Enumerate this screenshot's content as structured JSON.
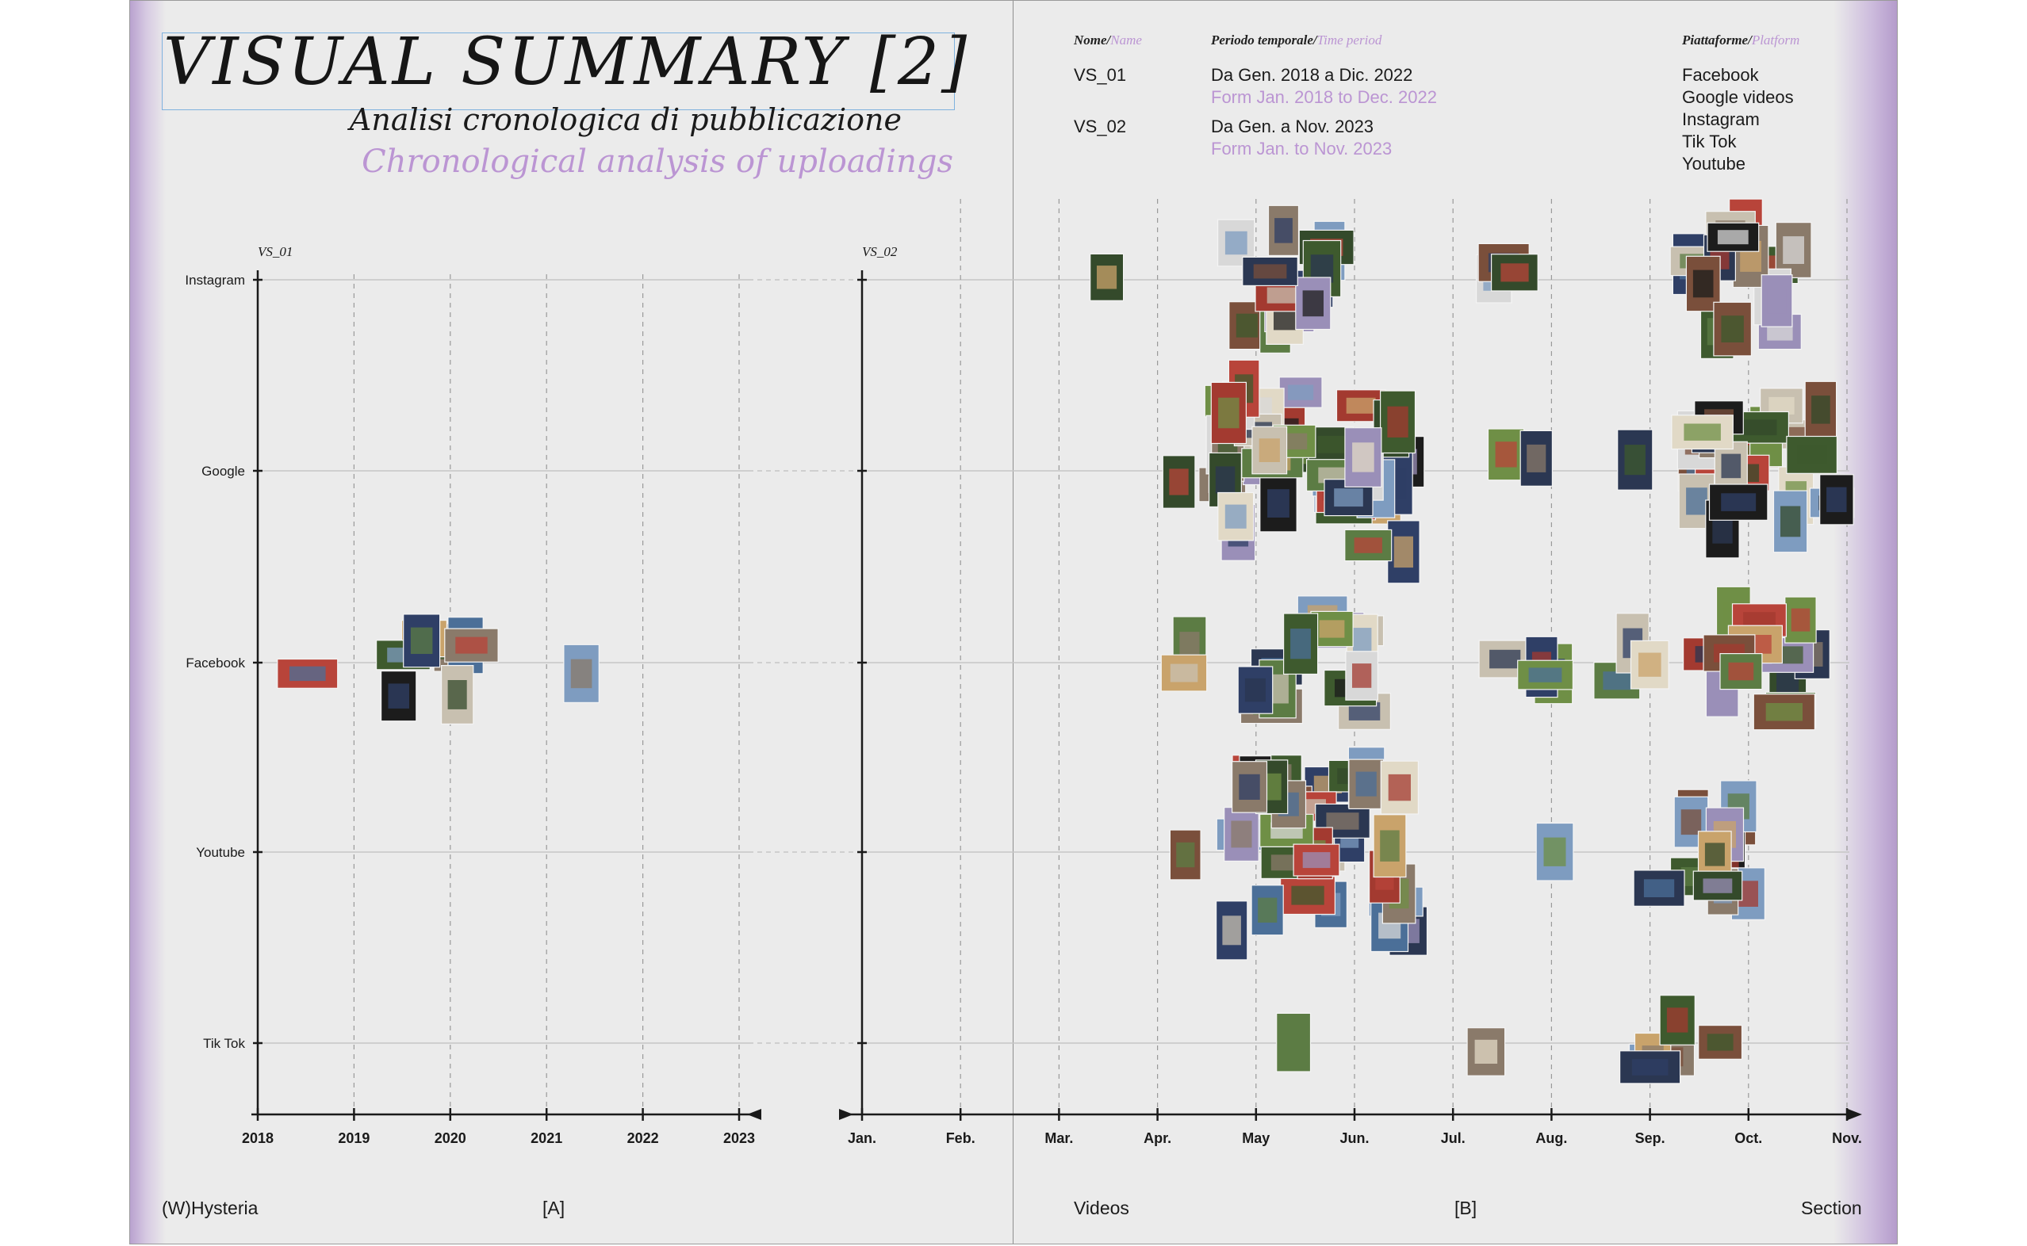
{
  "title": "VISUAL SUMMARY [2]",
  "subtitle_it": "Analisi cronologica di pubblicazione",
  "subtitle_en": "Chronological analysis of uploadings",
  "header": {
    "name_label_it": "Nome/",
    "name_label_en": "Name",
    "period_label_it": "Periodo temporale/",
    "period_label_en": "Time period",
    "platform_label_it": "Piattaforme/",
    "platform_label_en": "Platform"
  },
  "summaries": [
    {
      "name": "VS_01",
      "period_it": "Da Gen. 2018 a Dic. 2022",
      "period_en": "Form Jan. 2018 to Dec. 2022"
    },
    {
      "name": "VS_02",
      "period_it": "Da Gen. a Nov. 2023",
      "period_en": "Form Jan. to Nov. 2023"
    }
  ],
  "platforms": [
    "Facebook",
    "Google videos",
    "Instagram",
    "Tik Tok",
    "Youtube"
  ],
  "footer": {
    "left": "(W)Hysteria",
    "left_mark": "[A]",
    "center": "Videos",
    "right_mark": "[B]",
    "right": "Section"
  },
  "colors": {
    "accent_lilac": "#bb95d3",
    "title_box": "#7fb2de",
    "paper": "#ebebeb",
    "ink": "#161616"
  },
  "chart_data": [
    {
      "type": "scatter",
      "title": "VS_01",
      "x_label": "",
      "y_label": "",
      "x_ticks": [
        "2018",
        "2019",
        "2020",
        "2021",
        "2022",
        "2023"
      ],
      "y_categories": [
        "Instagram",
        "Google",
        "Facebook",
        "Youtube",
        "Tik Tok"
      ],
      "grid": true,
      "clusters": [
        {
          "x": 2018.55,
          "platform": "Facebook",
          "count": 1
        },
        {
          "x": 2019.8,
          "platform": "Facebook",
          "count": 8
        },
        {
          "x": 2021.45,
          "platform": "Facebook",
          "count": 1
        }
      ]
    },
    {
      "type": "scatter",
      "title": "VS_02",
      "x_label": "",
      "y_label": "",
      "x_ticks": [
        "Jan.",
        "Feb.",
        "Mar.",
        "Apr.",
        "May",
        "Jun.",
        "Jul.",
        "Aug.",
        "Sep.",
        "Oct.",
        "Nov."
      ],
      "y_categories": [
        "Instagram",
        "Google",
        "Facebook",
        "Youtube",
        "Tik Tok"
      ],
      "grid": true,
      "clusters": [
        {
          "x": 2.35,
          "platform": "Instagram",
          "count": 1
        },
        {
          "x": 4.35,
          "platform": "Instagram",
          "count": 14
        },
        {
          "x": 6.6,
          "platform": "Instagram",
          "count": 3
        },
        {
          "x": 8.95,
          "platform": "Instagram",
          "count": 16
        },
        {
          "x": 3.18,
          "platform": "Google",
          "count": 1
        },
        {
          "x": 4.6,
          "platform": "Google",
          "count": 40
        },
        {
          "x": 6.65,
          "platform": "Google",
          "count": 2
        },
        {
          "x": 7.95,
          "platform": "Google",
          "count": 1
        },
        {
          "x": 9.15,
          "platform": "Google",
          "count": 24
        },
        {
          "x": 3.3,
          "platform": "Facebook",
          "count": 2
        },
        {
          "x": 4.55,
          "platform": "Facebook",
          "count": 14
        },
        {
          "x": 6.8,
          "platform": "Facebook",
          "count": 4
        },
        {
          "x": 7.85,
          "platform": "Facebook",
          "count": 3
        },
        {
          "x": 9.15,
          "platform": "Facebook",
          "count": 14
        },
        {
          "x": 3.15,
          "platform": "Youtube",
          "count": 1
        },
        {
          "x": 4.65,
          "platform": "Youtube",
          "count": 36
        },
        {
          "x": 6.9,
          "platform": "Youtube",
          "count": 1
        },
        {
          "x": 8.5,
          "platform": "Youtube",
          "count": 12
        },
        {
          "x": 4.35,
          "platform": "Tik Tok",
          "count": 1
        },
        {
          "x": 6.45,
          "platform": "Tik Tok",
          "count": 1
        },
        {
          "x": 8.35,
          "platform": "Tik Tok",
          "count": 6
        }
      ]
    }
  ]
}
